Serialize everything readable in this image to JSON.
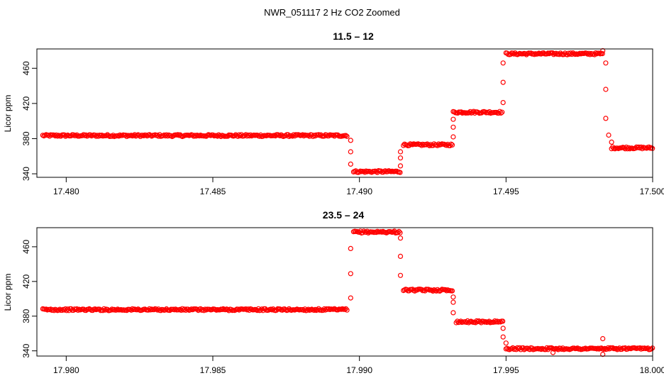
{
  "figure": {
    "title": "NWR_051117  2 Hz CO2 Zoomed"
  },
  "colors": {
    "points": "#ff0000",
    "axis": "#000000",
    "background": "#ffffff"
  },
  "chart_data": [
    {
      "type": "scatter",
      "title": "11.5 – 12",
      "xlabel": "",
      "ylabel": "Licor ppm",
      "xlim": [
        17.479,
        17.5
      ],
      "ylim": [
        336,
        482
      ],
      "xticks": [
        17.48,
        17.485,
        17.49,
        17.495,
        17.5
      ],
      "xtick_labels": [
        "17.480",
        "17.485",
        "17.490",
        "17.495",
        "17.500"
      ],
      "yticks": [
        340,
        380,
        420,
        460
      ],
      "ytick_labels": [
        "340",
        "380",
        "420",
        "460"
      ],
      "grid": false,
      "marker": "open-circle",
      "segments": [
        {
          "x_start": 17.4792,
          "x_end": 17.4896,
          "y": 383.5
        },
        {
          "x_start": 17.4898,
          "x_end": 17.4914,
          "y": 342.5
        },
        {
          "x_start": 17.4915,
          "x_end": 17.4932,
          "y": 373.0
        },
        {
          "x_start": 17.4932,
          "x_end": 17.4949,
          "y": 410.0
        },
        {
          "x_start": 17.495,
          "x_end": 17.4983,
          "y": 476.5
        },
        {
          "x_start": 17.4986,
          "x_end": 17.5,
          "y": 369.5
        }
      ],
      "transition_points": [
        [
          17.4897,
          378
        ],
        [
          17.4897,
          365
        ],
        [
          17.4897,
          351
        ],
        [
          17.4914,
          358
        ],
        [
          17.4914,
          349
        ],
        [
          17.4914,
          365
        ],
        [
          17.4932,
          382
        ],
        [
          17.4932,
          393
        ],
        [
          17.4932,
          402
        ],
        [
          17.4949,
          421
        ],
        [
          17.4949,
          444
        ],
        [
          17.4949,
          466
        ],
        [
          17.4983,
          480
        ],
        [
          17.4984,
          466
        ],
        [
          17.4984,
          436
        ],
        [
          17.4984,
          403
        ],
        [
          17.4985,
          384
        ],
        [
          17.4986,
          376
        ]
      ]
    },
    {
      "type": "scatter",
      "title": "23.5 – 24",
      "xlabel": "",
      "ylabel": "Licor ppm",
      "xlim": [
        17.979,
        18.0
      ],
      "ylim": [
        334,
        482
      ],
      "xticks": [
        17.98,
        17.985,
        17.99,
        17.995,
        18.0
      ],
      "xtick_labels": [
        "17.980",
        "17.985",
        "17.990",
        "17.995",
        "18.000"
      ],
      "yticks": [
        340,
        380,
        420,
        460
      ],
      "ytick_labels": [
        "340",
        "380",
        "420",
        "460"
      ],
      "grid": false,
      "marker": "open-circle",
      "segments": [
        {
          "x_start": 17.9792,
          "x_end": 17.9896,
          "y": 387.5
        },
        {
          "x_start": 17.9898,
          "x_end": 17.9914,
          "y": 477.0
        },
        {
          "x_start": 17.9915,
          "x_end": 17.9932,
          "y": 410.0
        },
        {
          "x_start": 17.9933,
          "x_end": 17.9949,
          "y": 373.5
        },
        {
          "x_start": 17.995,
          "x_end": 18.0,
          "y": 342.5
        }
      ],
      "transition_points": [
        [
          17.9897,
          401
        ],
        [
          17.9897,
          429
        ],
        [
          17.9897,
          458
        ],
        [
          17.9914,
          470
        ],
        [
          17.9914,
          449
        ],
        [
          17.9914,
          427
        ],
        [
          17.9932,
          402
        ],
        [
          17.9932,
          396
        ],
        [
          17.9932,
          384
        ],
        [
          17.9949,
          366
        ],
        [
          17.9949,
          356
        ],
        [
          17.995,
          349
        ],
        [
          17.9966,
          338
        ],
        [
          17.9983,
          354
        ],
        [
          17.9983,
          336
        ]
      ]
    }
  ]
}
